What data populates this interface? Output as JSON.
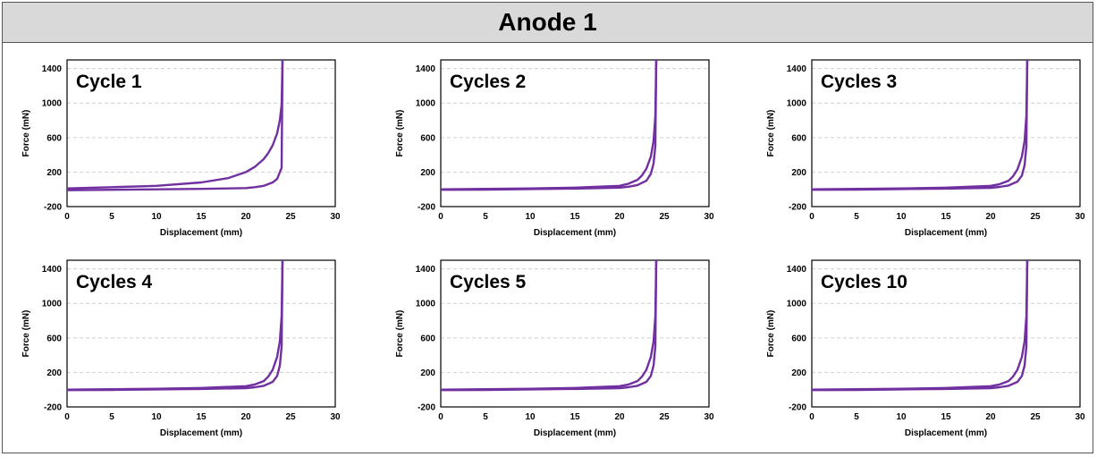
{
  "header": {
    "title": "Anode 1"
  },
  "colors": {
    "series": "#7030a0",
    "grid": "#cfcfcf",
    "axis": "#000000",
    "header_bg": "#d9d9d9"
  },
  "chart_data": [
    {
      "type": "line",
      "title": "Cycle 1",
      "xlabel": "Displacement (mm)",
      "ylabel": "Force (mN)",
      "xlim": [
        0,
        30
      ],
      "ylim": [
        -200,
        1500
      ],
      "xticks": [
        0,
        5,
        10,
        15,
        20,
        25,
        30
      ],
      "yticks": [
        -200,
        200,
        600,
        1000,
        1400
      ],
      "grid": "horizontal dashed",
      "series": [
        {
          "x": [
            0,
            5,
            10,
            15,
            18,
            20,
            21,
            22,
            22.5,
            23,
            23.5,
            23.8,
            24,
            24.1
          ],
          "y": [
            10,
            25,
            40,
            80,
            130,
            200,
            260,
            350,
            420,
            510,
            650,
            800,
            980,
            1500
          ]
        },
        {
          "x": [
            24.1,
            24,
            23.5,
            23,
            22,
            21,
            20,
            15,
            10,
            5,
            0
          ],
          "y": [
            1500,
            250,
            120,
            80,
            40,
            25,
            15,
            5,
            0,
            -5,
            -10
          ]
        }
      ]
    },
    {
      "type": "line",
      "title": "Cycles 2",
      "xlabel": "Displacement (mm)",
      "ylabel": "Force (mN)",
      "xlim": [
        0,
        30
      ],
      "ylim": [
        -200,
        1500
      ],
      "xticks": [
        0,
        5,
        10,
        15,
        20,
        25,
        30
      ],
      "yticks": [
        -200,
        200,
        600,
        1000,
        1400
      ],
      "grid": "horizontal dashed",
      "series": [
        {
          "x": [
            0,
            5,
            10,
            15,
            20,
            21,
            22,
            22.5,
            23,
            23.5,
            23.8,
            24,
            24.1
          ],
          "y": [
            0,
            5,
            10,
            20,
            40,
            65,
            110,
            160,
            240,
            380,
            560,
            850,
            1500
          ]
        },
        {
          "x": [
            24.1,
            24,
            23.8,
            23.5,
            23,
            22,
            21,
            20,
            15,
            10,
            5,
            0
          ],
          "y": [
            1500,
            500,
            300,
            180,
            100,
            50,
            30,
            20,
            8,
            3,
            -3,
            -5
          ]
        }
      ]
    },
    {
      "type": "line",
      "title": "Cycles 3",
      "xlabel": "Displacement (mm)",
      "ylabel": "Force (mN)",
      "xlim": [
        0,
        30
      ],
      "ylim": [
        -200,
        1500
      ],
      "xticks": [
        0,
        5,
        10,
        15,
        20,
        25,
        30
      ],
      "yticks": [
        -200,
        200,
        600,
        1000,
        1400
      ],
      "grid": "horizontal dashed",
      "series": [
        {
          "x": [
            0,
            5,
            10,
            15,
            20,
            21,
            22,
            22.5,
            23,
            23.5,
            23.8,
            24,
            24.1
          ],
          "y": [
            0,
            5,
            10,
            20,
            40,
            60,
            100,
            150,
            230,
            380,
            560,
            850,
            1500
          ]
        },
        {
          "x": [
            24.1,
            24,
            23.8,
            23.5,
            23,
            22,
            21,
            20,
            15,
            10,
            5,
            0
          ],
          "y": [
            1500,
            500,
            280,
            160,
            90,
            45,
            28,
            18,
            8,
            3,
            -3,
            -5
          ]
        }
      ]
    },
    {
      "type": "line",
      "title": "Cycles 4",
      "xlabel": "Displacement (mm)",
      "ylabel": "Force (mN)",
      "xlim": [
        0,
        30
      ],
      "ylim": [
        -200,
        1500
      ],
      "xticks": [
        0,
        5,
        10,
        15,
        20,
        25,
        30
      ],
      "yticks": [
        -200,
        200,
        600,
        1000,
        1400
      ],
      "grid": "horizontal dashed",
      "series": [
        {
          "x": [
            0,
            5,
            10,
            15,
            20,
            21,
            22,
            22.5,
            23,
            23.5,
            23.8,
            24,
            24.1
          ],
          "y": [
            0,
            5,
            10,
            20,
            40,
            60,
            100,
            150,
            230,
            380,
            560,
            850,
            1500
          ]
        },
        {
          "x": [
            24.1,
            24,
            23.8,
            23.5,
            23,
            22,
            21,
            20,
            15,
            10,
            5,
            0
          ],
          "y": [
            1500,
            500,
            280,
            160,
            90,
            45,
            28,
            18,
            8,
            3,
            -3,
            -5
          ]
        }
      ]
    },
    {
      "type": "line",
      "title": "Cycles 5",
      "xlabel": "Displacement (mm)",
      "ylabel": "Force (mN)",
      "xlim": [
        0,
        30
      ],
      "ylim": [
        -200,
        1500
      ],
      "xticks": [
        0,
        5,
        10,
        15,
        20,
        25,
        30
      ],
      "yticks": [
        -200,
        200,
        600,
        1000,
        1400
      ],
      "grid": "horizontal dashed",
      "series": [
        {
          "x": [
            0,
            5,
            10,
            15,
            20,
            21,
            22,
            22.5,
            23,
            23.5,
            23.8,
            24,
            24.1
          ],
          "y": [
            0,
            5,
            10,
            20,
            40,
            60,
            100,
            150,
            230,
            380,
            560,
            850,
            1500
          ]
        },
        {
          "x": [
            24.1,
            24,
            23.8,
            23.5,
            23,
            22,
            21,
            20,
            15,
            10,
            5,
            0
          ],
          "y": [
            1500,
            500,
            280,
            160,
            90,
            45,
            28,
            18,
            8,
            3,
            -3,
            -5
          ]
        }
      ]
    },
    {
      "type": "line",
      "title": "Cycles 10",
      "xlabel": "Displacement (mm)",
      "ylabel": "Force (mN)",
      "xlim": [
        0,
        30
      ],
      "ylim": [
        -200,
        1500
      ],
      "xticks": [
        0,
        5,
        10,
        15,
        20,
        25,
        30
      ],
      "yticks": [
        -200,
        200,
        600,
        1000,
        1400
      ],
      "grid": "horizontal dashed",
      "series": [
        {
          "x": [
            0,
            5,
            10,
            15,
            20,
            21,
            22,
            22.5,
            23,
            23.5,
            23.8,
            24,
            24.1
          ],
          "y": [
            0,
            5,
            10,
            20,
            40,
            60,
            100,
            150,
            230,
            380,
            560,
            850,
            1500
          ]
        },
        {
          "x": [
            24.1,
            24,
            23.8,
            23.5,
            23,
            22,
            21,
            20,
            15,
            10,
            5,
            0
          ],
          "y": [
            1500,
            500,
            280,
            160,
            90,
            45,
            28,
            18,
            8,
            3,
            -3,
            -5
          ]
        }
      ]
    }
  ]
}
